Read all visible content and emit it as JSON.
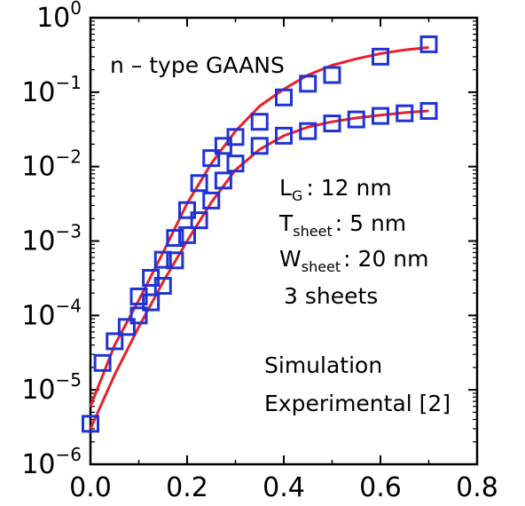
{
  "chart_data": {
    "type": "scatter",
    "title": "",
    "xlabel": "",
    "ylabel": "",
    "xlim": [
      0.0,
      0.8
    ],
    "ylim": [
      1e-06,
      1
    ],
    "yscale": "log",
    "grid": false,
    "x_ticks": [
      "0.0",
      "0.2",
      "0.4",
      "0.6",
      "0.8"
    ],
    "y_ticks": [
      {
        "base": "10",
        "exp": "0"
      },
      {
        "base": "10",
        "exp": "−1"
      },
      {
        "base": "10",
        "exp": "−2"
      },
      {
        "base": "10",
        "exp": "−3"
      },
      {
        "base": "10",
        "exp": "−4"
      },
      {
        "base": "10",
        "exp": "−5"
      },
      {
        "base": "10",
        "exp": "−6"
      }
    ],
    "annotations": {
      "device_type": "n – type GAANS",
      "lg": {
        "main": "L",
        "sub": "G",
        "rest": ": 12 nm"
      },
      "tsheet": {
        "main": "T",
        "sub": "sheet",
        "rest": ": 5 nm"
      },
      "wsheet": {
        "main": "W",
        "sub": "sheet",
        "rest": ": 20 nm"
      },
      "sheets": "3 sheets"
    },
    "legend": {
      "position": "bottom-right",
      "entries": [
        "Simulation",
        "Experimental [2]"
      ]
    },
    "colors": {
      "simulation": "#e8202a",
      "experimental": "#1f33d4"
    },
    "series": [
      {
        "role": "simulation",
        "label": "Simulation",
        "style": "line",
        "x": [
          0.0,
          0.05,
          0.1,
          0.15,
          0.2,
          0.25,
          0.3,
          0.35,
          0.4,
          0.45,
          0.5,
          0.55,
          0.6,
          0.65,
          0.7
        ],
        "y": [
          6e-06,
          4e-05,
          0.00016,
          0.0007,
          0.0032,
          0.011,
          0.03,
          0.065,
          0.11,
          0.17,
          0.23,
          0.28,
          0.33,
          0.37,
          0.4
        ]
      },
      {
        "role": "simulation",
        "label": "Simulation",
        "style": "line",
        "x": [
          0.0,
          0.05,
          0.1,
          0.15,
          0.2,
          0.25,
          0.3,
          0.35,
          0.4,
          0.45,
          0.5,
          0.55,
          0.6,
          0.65,
          0.7
        ],
        "y": [
          3e-06,
          1.6e-05,
          7e-05,
          0.00028,
          0.001,
          0.0033,
          0.009,
          0.017,
          0.026,
          0.034,
          0.04,
          0.045,
          0.049,
          0.053,
          0.056
        ]
      },
      {
        "role": "experimental",
        "label": "Experimental [2]",
        "style": "marker",
        "x": [
          0.0,
          0.025,
          0.05,
          0.075,
          0.1,
          0.125,
          0.15,
          0.175,
          0.2,
          0.225,
          0.25,
          0.275,
          0.3,
          0.35,
          0.4,
          0.45,
          0.5,
          0.6,
          0.7
        ],
        "y": [
          3.5e-06,
          2.3e-05,
          4.5e-05,
          7e-05,
          0.00018,
          0.00032,
          0.00056,
          0.0011,
          0.0026,
          0.006,
          0.013,
          0.019,
          0.025,
          0.04,
          0.085,
          0.13,
          0.17,
          0.3,
          0.44
        ]
      },
      {
        "role": "experimental",
        "label": "Experimental [2]",
        "style": "marker",
        "x": [
          0.1,
          0.125,
          0.15,
          0.175,
          0.2,
          0.225,
          0.25,
          0.275,
          0.3,
          0.35,
          0.4,
          0.45,
          0.5,
          0.55,
          0.6,
          0.65,
          0.7
        ],
        "y": [
          0.0001,
          0.00015,
          0.00025,
          0.00055,
          0.0012,
          0.0019,
          0.0035,
          0.0065,
          0.011,
          0.019,
          0.026,
          0.03,
          0.038,
          0.043,
          0.048,
          0.052,
          0.056
        ]
      }
    ]
  }
}
